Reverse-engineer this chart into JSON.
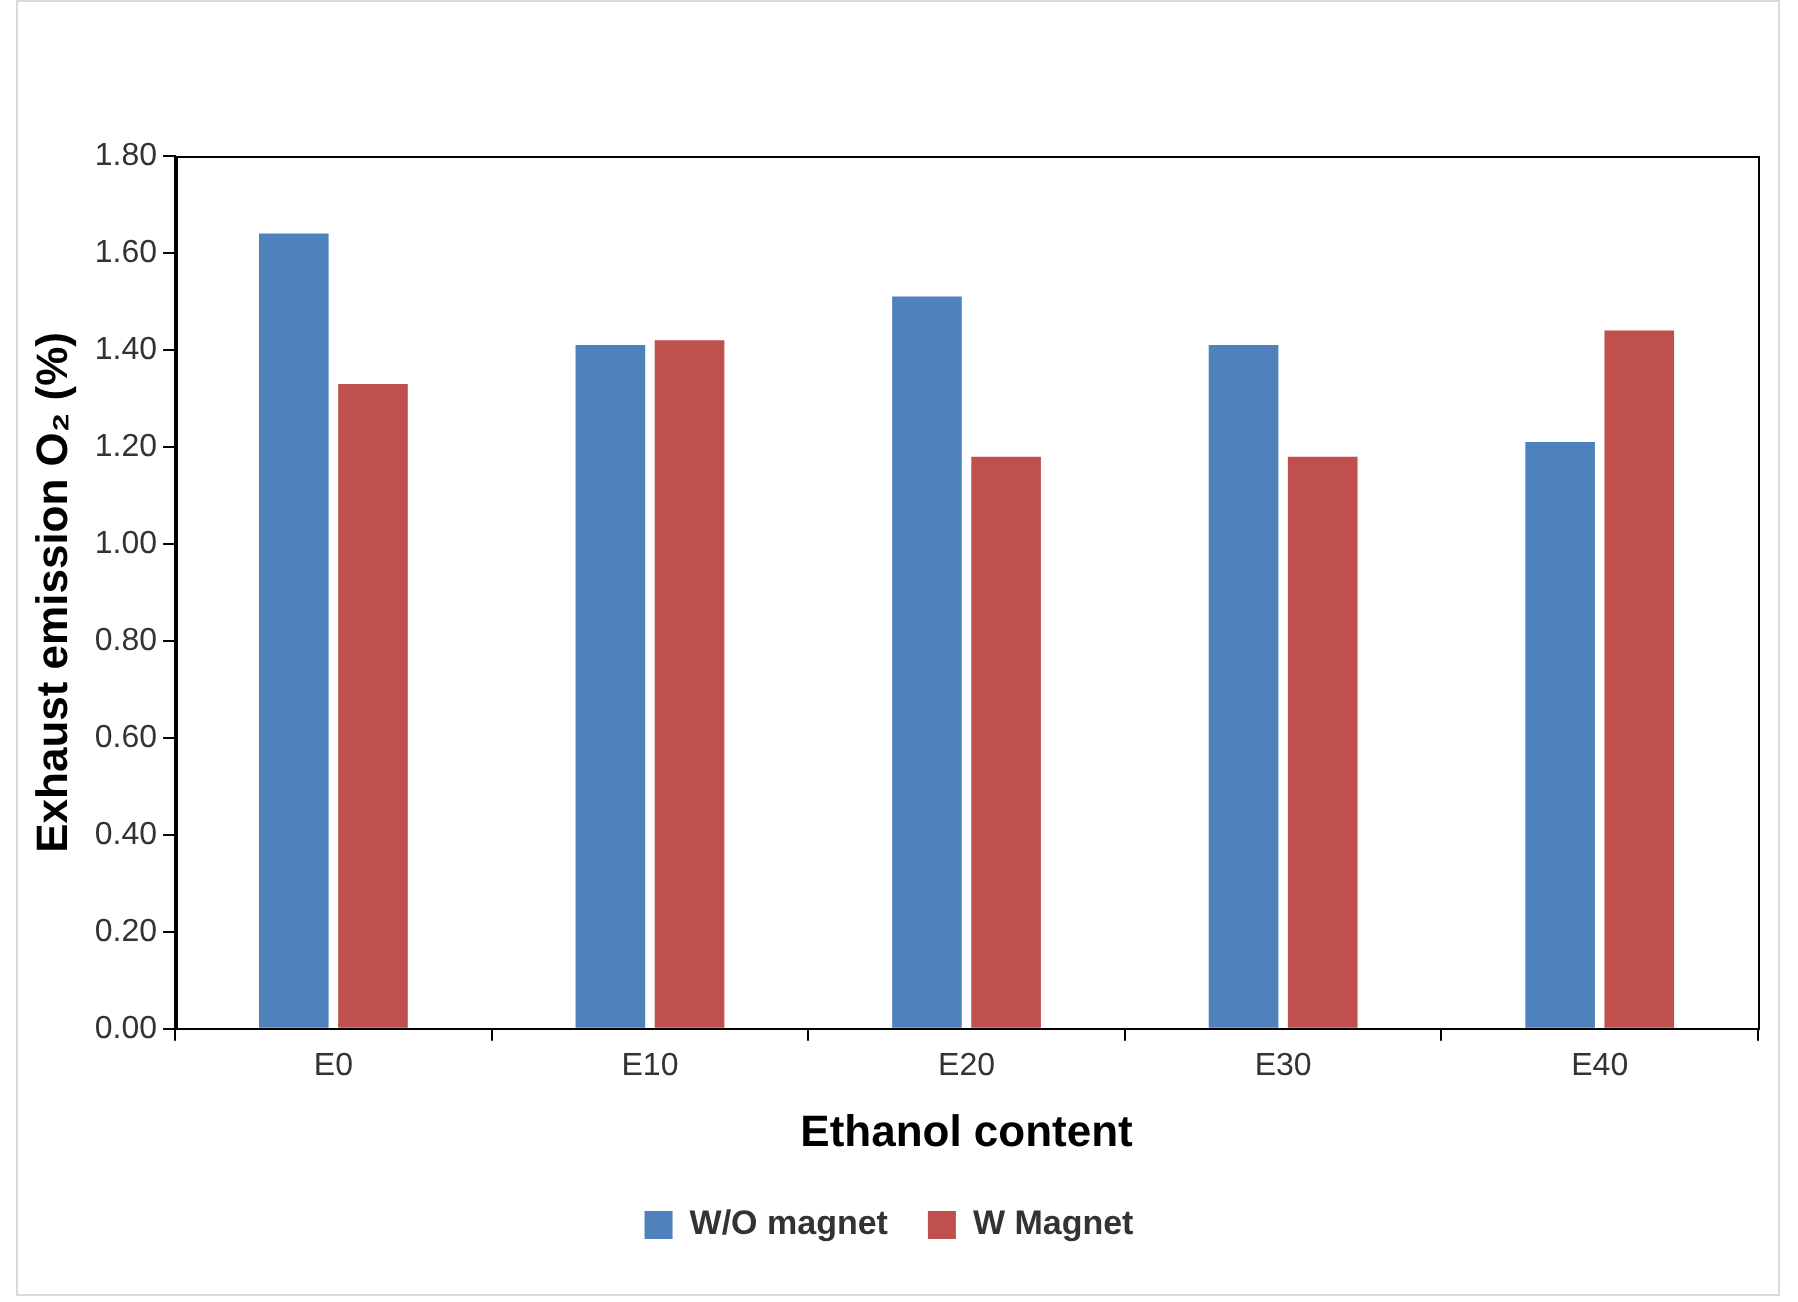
{
  "chart_data": {
    "type": "bar",
    "xlabel": "Ethanol content",
    "ylabel": "Exhaust emission O₂ (%)",
    "categories": [
      "E0",
      "E10",
      "E20",
      "E30",
      "E40"
    ],
    "series": [
      {
        "name": "W/O magnet",
        "color": "#4f81bd",
        "values": [
          1.64,
          1.41,
          1.51,
          1.41,
          1.21
        ]
      },
      {
        "name": "W Magnet",
        "color": "#c0504d",
        "values": [
          1.33,
          1.42,
          1.18,
          1.18,
          1.44
        ]
      }
    ],
    "ylim": [
      0,
      1.8
    ],
    "yticks": [
      {
        "value": 0,
        "label": "0.00"
      },
      {
        "value": 0.2,
        "label": "0.20"
      },
      {
        "value": 0.4,
        "label": "0.40"
      },
      {
        "value": 0.6,
        "label": "0.60"
      },
      {
        "value": 0.8,
        "label": "0.80"
      },
      {
        "value": 1.0,
        "label": "1.00"
      },
      {
        "value": 1.2,
        "label": "1.20"
      },
      {
        "value": 1.4,
        "label": "1.40"
      },
      {
        "value": 1.6,
        "label": "1.60"
      },
      {
        "value": 1.8,
        "label": "1.80"
      }
    ],
    "grid": false,
    "legend": "bottom"
  }
}
